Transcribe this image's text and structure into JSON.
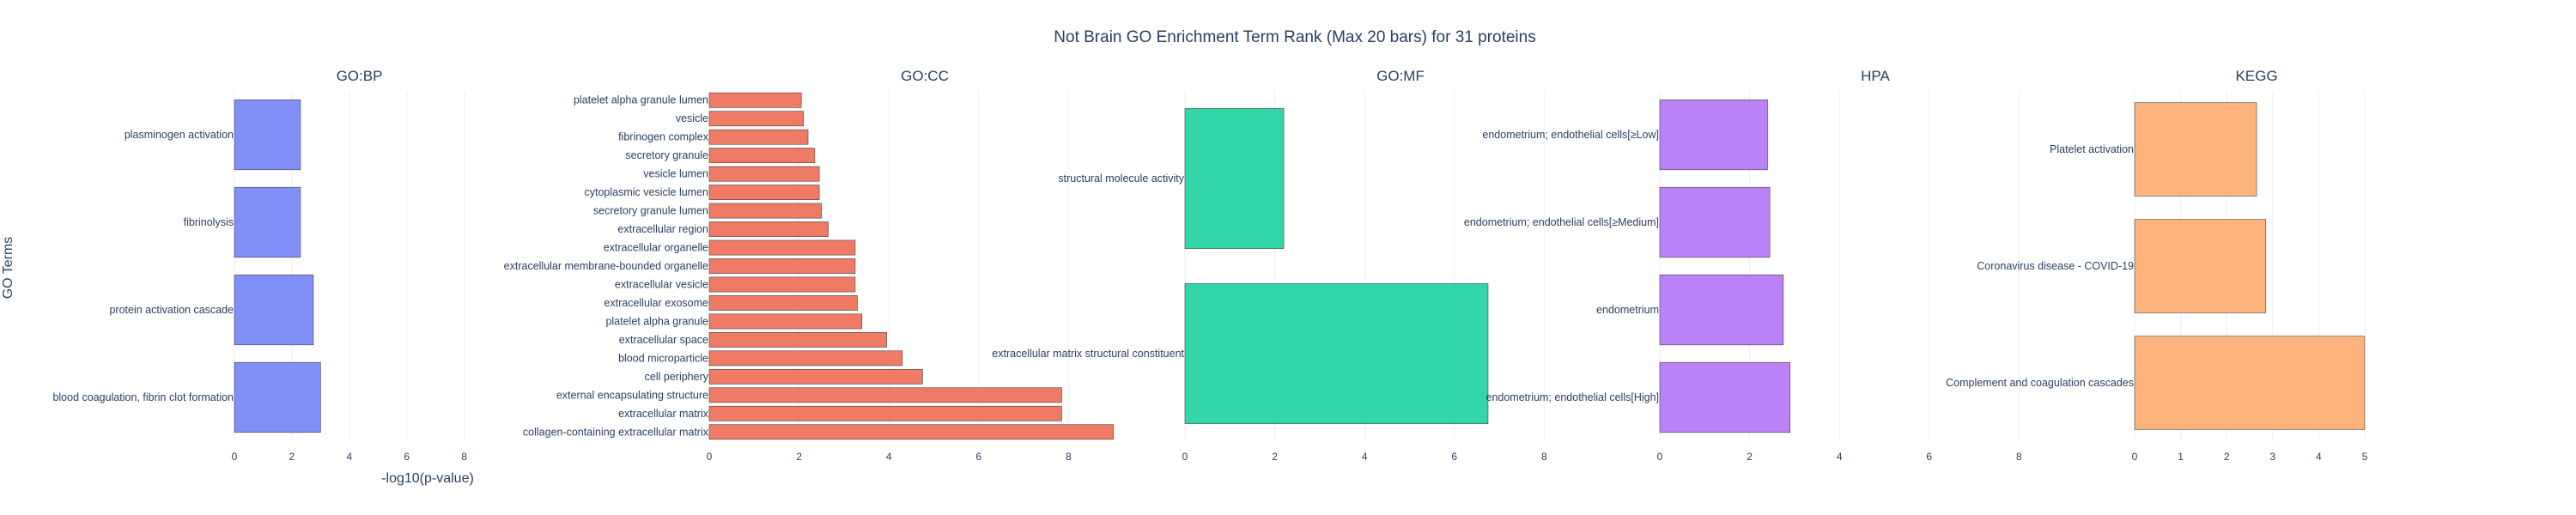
{
  "chart_data": {
    "type": "bar",
    "orientation": "horizontal",
    "title": "Not Brain GO Enrichment Term Rank (Max 20 bars) for 31 proteins",
    "xlabel": "-log10(p-value)",
    "ylabel": "GO Terms",
    "panels": [
      {
        "name": "GO:BP",
        "color": "#8190f9",
        "xlim": [
          0,
          8.7
        ],
        "ticks": [
          0,
          2,
          4,
          6,
          8
        ],
        "categories": [
          "blood coagulation, fibrin clot formation",
          "protein activation cascade",
          "fibrinolysis",
          "plasminogen activation"
        ],
        "values": [
          3.0,
          2.75,
          2.3,
          2.3
        ]
      },
      {
        "name": "GO:CC",
        "color": "#ef7a65",
        "xlim": [
          0,
          9.6
        ],
        "ticks": [
          0,
          2,
          4,
          6,
          8
        ],
        "categories": [
          "collagen-containing extracellular matrix",
          "extracellular matrix",
          "external encapsulating structure",
          "cell periphery",
          "blood microparticle",
          "extracellular space",
          "platelet alpha granule",
          "extracellular exosome",
          "extracellular vesicle",
          "extracellular membrane-bounded organelle",
          "extracellular organelle",
          "extracellular region",
          "secretory granule lumen",
          "cytoplasmic vesicle lumen",
          "vesicle lumen",
          "secretory granule",
          "fibrinogen complex",
          "vesicle",
          "platelet alpha granule lumen"
        ],
        "values": [
          9.0,
          7.85,
          7.85,
          4.75,
          4.3,
          3.95,
          3.4,
          3.3,
          3.25,
          3.25,
          3.25,
          2.65,
          2.5,
          2.45,
          2.45,
          2.35,
          2.2,
          2.1,
          2.05
        ]
      },
      {
        "name": "GO:MF",
        "color": "#33d6a8",
        "xlim": [
          0,
          9.6
        ],
        "ticks": [
          0,
          2,
          4,
          6,
          8
        ],
        "categories": [
          "extracellular matrix structural constituent",
          "structural molecule activity"
        ],
        "values": [
          6.75,
          2.2
        ]
      },
      {
        "name": "HPA",
        "color": "#bb81f7",
        "xlim": [
          0,
          9.6
        ],
        "ticks": [
          0,
          2,
          4,
          6,
          8
        ],
        "categories": [
          "endometrium; endothelial cells[High]",
          "endometrium",
          "endometrium; endothelial cells[≥Medium]",
          "endometrium; endothelial cells[≥Low]"
        ],
        "values": [
          2.9,
          2.75,
          2.45,
          2.4
        ]
      },
      {
        "name": "KEGG",
        "color": "#feb27c",
        "xlim": [
          0,
          5.3
        ],
        "ticks": [
          0,
          1,
          2,
          3,
          4,
          5
        ],
        "categories": [
          "Complement and coagulation cascades",
          "Coronavirus disease - COVID-19",
          "Platelet activation"
        ],
        "values": [
          5.0,
          2.85,
          2.65
        ]
      }
    ],
    "grid": true,
    "legend": false
  }
}
